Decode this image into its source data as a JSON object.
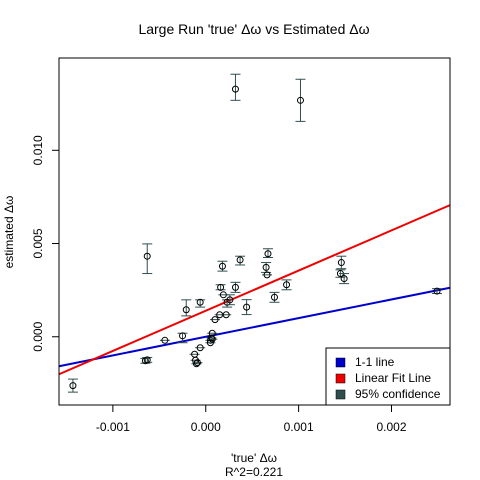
{
  "chart_data": {
    "type": "scatter",
    "title": "Large Run 'true' Δω vs Estimated Δω",
    "xlabel": "'true' Δω",
    "xlabel2": "R^2=0.221",
    "ylabel": "estimated Δω",
    "xlim": [
      -0.00158,
      0.00263
    ],
    "ylim": [
      -0.00366,
      0.01495
    ],
    "xticks": [
      -0.001,
      0.0,
      0.001,
      0.002
    ],
    "xtick_labels": [
      "-0.001",
      "0.000",
      "0.001",
      "0.002"
    ],
    "yticks": [
      0.0,
      0.005,
      0.01
    ],
    "ytick_labels": [
      "0.000",
      "0.005",
      "0.010"
    ],
    "grid": false,
    "legend_position": "bottom-right",
    "legend": [
      {
        "label": "1-1 line",
        "color": "#0000cc"
      },
      {
        "label": "Linear Fit Line",
        "color": "#ee0000"
      },
      {
        "label": "95% confidence",
        "color": "#2f4f4f"
      }
    ],
    "lines": [
      {
        "name": "1-1 line",
        "color": "#0000cc",
        "x": [
          -0.00158,
          0.00263
        ],
        "y": [
          -0.00158,
          0.00263
        ]
      },
      {
        "name": "Linear Fit Line",
        "color": "#ee0000",
        "x": [
          -0.00158,
          0.00263
        ],
        "y": [
          -0.00201,
          0.00706
        ]
      }
    ],
    "points": [
      {
        "x": -0.00143,
        "y": -0.00262,
        "lo": -0.00297,
        "hi": -0.00227
      },
      {
        "x": -0.00065,
        "y": -0.00129,
        "lo": -0.00142,
        "hi": -0.00116
      },
      {
        "x": -0.00063,
        "y": -0.00124,
        "lo": -0.00137,
        "hi": -0.00111
      },
      {
        "x": -0.00063,
        "y": 0.00432,
        "lo": 0.00339,
        "hi": 0.00498
      },
      {
        "x": -0.00044,
        "y": -0.00019,
        "lo": -0.00019,
        "hi": -0.00019
      },
      {
        "x": -0.00025,
        "y": 5e-05,
        "lo": -0.00032,
        "hi": 0.00019
      },
      {
        "x": -0.00021,
        "y": 0.00145,
        "lo": 0.00112,
        "hi": 0.00198
      },
      {
        "x": -0.00012,
        "y": -0.00094,
        "lo": -0.00094,
        "hi": -0.00094
      },
      {
        "x": -0.00011,
        "y": -0.00126,
        "lo": -0.00126,
        "hi": -0.00126
      },
      {
        "x": -0.0001,
        "y": -0.00145,
        "lo": -0.00145,
        "hi": -0.00145
      },
      {
        "x": -9e-05,
        "y": -0.00139,
        "lo": -0.00139,
        "hi": -0.00139
      },
      {
        "x": -6e-05,
        "y": 0.00185,
        "lo": 0.00159,
        "hi": 0.00198
      },
      {
        "x": -6e-05,
        "y": -0.00059,
        "lo": -0.00059,
        "hi": -0.00059
      },
      {
        "x": 5e-05,
        "y": -0.00019,
        "lo": -0.00019,
        "hi": -0.00019
      },
      {
        "x": 5e-05,
        "y": -0.00032,
        "lo": -0.00032,
        "hi": -0.00032
      },
      {
        "x": 6e-05,
        "y": -6e-05,
        "lo": -6e-05,
        "hi": -6e-05
      },
      {
        "x": 7e-05,
        "y": -0.00013,
        "lo": -0.00013,
        "hi": -0.00013
      },
      {
        "x": 7e-05,
        "y": 0.00019,
        "lo": 0.00019,
        "hi": 0.00019
      },
      {
        "x": 0.0001,
        "y": 0.00092,
        "lo": 0.00092,
        "hi": 0.00092
      },
      {
        "x": 0.00015,
        "y": 0.00118,
        "lo": 0.00118,
        "hi": 0.00118
      },
      {
        "x": 0.00016,
        "y": 0.00265,
        "lo": 0.00252,
        "hi": 0.00279
      },
      {
        "x": 0.00018,
        "y": 0.00378,
        "lo": 0.00352,
        "hi": 0.00405
      },
      {
        "x": 0.00019,
        "y": 0.00225,
        "lo": 0.00225,
        "hi": 0.00225
      },
      {
        "x": 0.00022,
        "y": 0.00118,
        "lo": 0.00118,
        "hi": 0.00118
      },
      {
        "x": 0.00023,
        "y": 0.00185,
        "lo": 0.00159,
        "hi": 0.00198
      },
      {
        "x": 0.00026,
        "y": 0.00198,
        "lo": 0.00172,
        "hi": 0.00225
      },
      {
        "x": 0.00032,
        "y": 0.00265,
        "lo": 0.00238,
        "hi": 0.00292
      },
      {
        "x": 0.00032,
        "y": 0.01328,
        "lo": 0.01268,
        "hi": 0.01408
      },
      {
        "x": 0.00037,
        "y": 0.00412,
        "lo": 0.00385,
        "hi": 0.00432
      },
      {
        "x": 0.00044,
        "y": 0.00159,
        "lo": 0.00119,
        "hi": 0.00199
      },
      {
        "x": 0.00065,
        "y": 0.00372,
        "lo": 0.00345,
        "hi": 0.00398
      },
      {
        "x": 0.00066,
        "y": 0.00332,
        "lo": 0.00332,
        "hi": 0.00332
      },
      {
        "x": 0.00067,
        "y": 0.00445,
        "lo": 0.00425,
        "hi": 0.00472
      },
      {
        "x": 0.00074,
        "y": 0.00212,
        "lo": 0.00185,
        "hi": 0.00238
      },
      {
        "x": 0.00087,
        "y": 0.00279,
        "lo": 0.00252,
        "hi": 0.00305
      },
      {
        "x": 0.00102,
        "y": 0.01268,
        "lo": 0.01155,
        "hi": 0.01381
      },
      {
        "x": 0.00145,
        "y": 0.00339,
        "lo": 0.00319,
        "hi": 0.00359
      },
      {
        "x": 0.00146,
        "y": 0.00398,
        "lo": 0.00365,
        "hi": 0.00432
      },
      {
        "x": 0.00149,
        "y": 0.00312,
        "lo": 0.00285,
        "hi": 0.00339
      },
      {
        "x": 0.00249,
        "y": 0.00245,
        "lo": 0.00232,
        "hi": 0.00258
      }
    ]
  }
}
